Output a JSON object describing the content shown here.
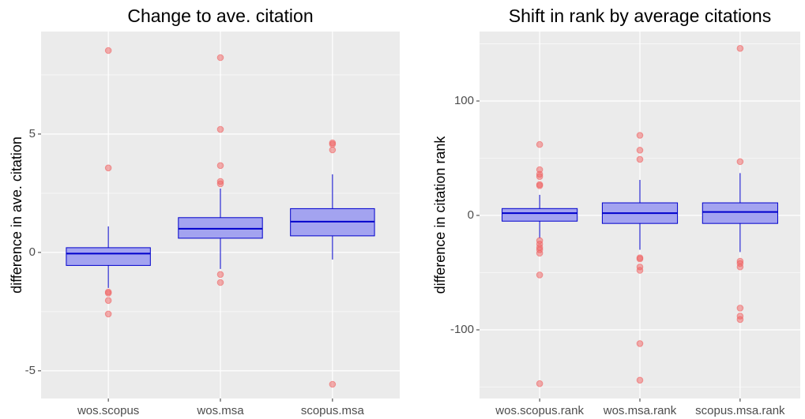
{
  "chart_data": [
    {
      "type": "box",
      "title": "Change to ave. citation",
      "y_label": "difference in ave. citation",
      "categories": [
        "wos.scopus",
        "wos.msa",
        "scopus.msa"
      ],
      "ylim": [
        -6.17,
        9.33
      ],
      "yticks": [
        -5,
        0,
        5
      ],
      "minor_yticks": [
        -2.5,
        2.5,
        7.5
      ],
      "grid": true,
      "box_color": "#a3a3f0",
      "line_color": "#0000cc",
      "outlier_color": "#f06060",
      "boxes": [
        {
          "whisker_low": -1.5,
          "q1": -0.55,
          "median": -0.05,
          "q3": 0.2,
          "whisker_high": 1.1,
          "outliers": [
            8.53,
            3.57,
            -1.67,
            -1.72,
            -2.03,
            -2.6
          ]
        },
        {
          "whisker_low": -0.7,
          "q1": 0.6,
          "median": 1.0,
          "q3": 1.47,
          "whisker_high": 2.7,
          "outliers": [
            8.23,
            5.2,
            3.67,
            3.0,
            2.9,
            -0.93,
            -1.27
          ]
        },
        {
          "whisker_low": -0.3,
          "q1": 0.7,
          "median": 1.3,
          "q3": 1.85,
          "whisker_high": 3.3,
          "outliers": [
            4.63,
            4.57,
            4.33,
            -5.57
          ]
        }
      ]
    },
    {
      "type": "box",
      "title": "Shift in rank by average citations",
      "y_label": "difference in citation rank",
      "categories": [
        "wos.scopus.rank",
        "wos.msa.rank",
        "scopus.msa.rank"
      ],
      "ylim": [
        -160,
        160.7
      ],
      "yticks": [
        -100,
        0,
        100
      ],
      "minor_yticks": [
        -150,
        -50,
        50,
        150
      ],
      "grid": true,
      "box_color": "#a3a3f0",
      "line_color": "#0000cc",
      "outlier_color": "#f06060",
      "boxes": [
        {
          "whisker_low": -20,
          "q1": -5,
          "median": 2,
          "q3": 6,
          "whisker_high": 18,
          "outliers": [
            62,
            40,
            36,
            34,
            27,
            26,
            -22,
            -25,
            -28,
            -30,
            -33,
            -52,
            -147
          ]
        },
        {
          "whisker_low": -30,
          "q1": -7,
          "median": 2,
          "q3": 11,
          "whisker_high": 31,
          "outliers": [
            70,
            57,
            49,
            -37,
            -38,
            -45,
            -48,
            -112,
            -144
          ]
        },
        {
          "whisker_low": -32,
          "q1": -7,
          "median": 3,
          "q3": 11,
          "whisker_high": 37,
          "outliers": [
            146,
            47,
            -40,
            -42,
            -45,
            -81,
            -88,
            -91
          ]
        }
      ]
    }
  ]
}
